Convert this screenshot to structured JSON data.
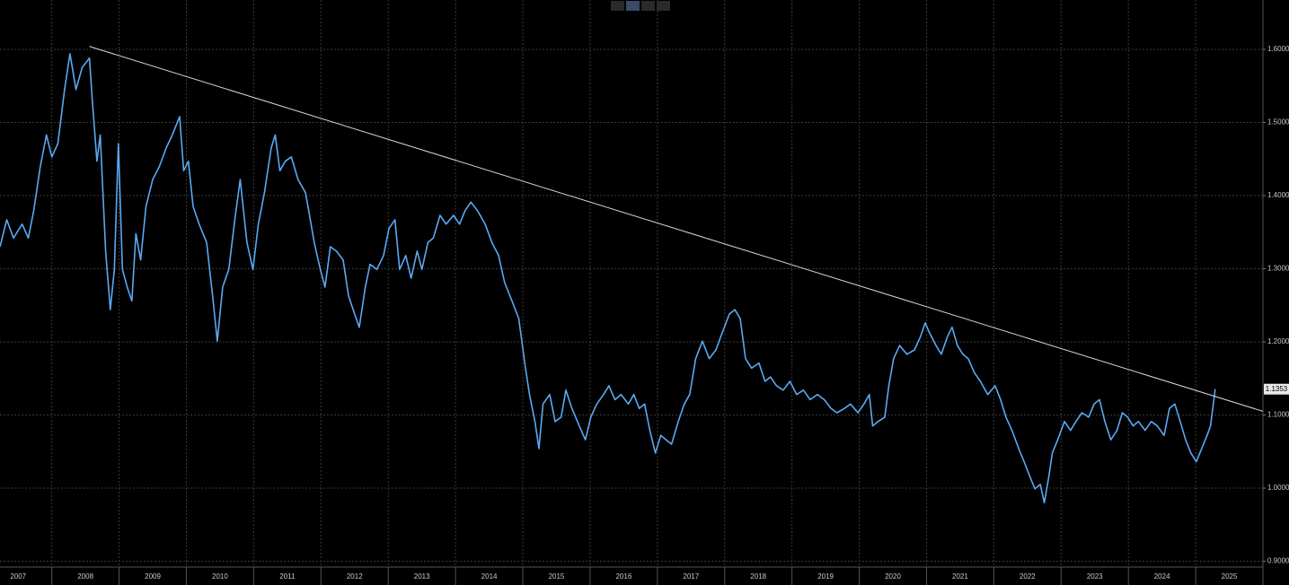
{
  "chart_data": {
    "type": "line",
    "x": [
      2007.23,
      2007.33,
      2007.43,
      2007.56,
      2007.65,
      2007.73,
      2007.83,
      2007.92,
      2008.0,
      2008.09,
      2008.19,
      2008.27,
      2008.36,
      2008.45,
      2008.56,
      2008.6,
      2008.67,
      2008.72,
      2008.8,
      2008.87,
      2008.93,
      2008.99,
      2009.05,
      2009.12,
      2009.19,
      2009.25,
      2009.32,
      2009.4,
      2009.5,
      2009.6,
      2009.7,
      2009.79,
      2009.9,
      2009.96,
      2010.03,
      2010.1,
      2010.19,
      2010.3,
      2010.39,
      2010.46,
      2010.54,
      2010.63,
      2010.72,
      2010.8,
      2010.9,
      2010.99,
      2011.07,
      2011.16,
      2011.26,
      2011.32,
      2011.39,
      2011.47,
      2011.56,
      2011.66,
      2011.77,
      2011.83,
      2011.9,
      2011.99,
      2012.06,
      2012.14,
      2012.23,
      2012.33,
      2012.41,
      2012.5,
      2012.57,
      2012.66,
      2012.73,
      2012.83,
      2012.93,
      2013.01,
      2013.1,
      2013.17,
      2013.26,
      2013.34,
      2013.43,
      2013.5,
      2013.59,
      2013.67,
      2013.77,
      2013.86,
      2013.97,
      2014.06,
      2014.14,
      2014.23,
      2014.33,
      2014.44,
      2014.54,
      2014.64,
      2014.73,
      2014.84,
      2014.94,
      2015.04,
      2015.1,
      2015.18,
      2015.24,
      2015.3,
      2015.4,
      2015.48,
      2015.57,
      2015.64,
      2015.73,
      2015.84,
      2015.93,
      2016.01,
      2016.1,
      2016.2,
      2016.28,
      2016.37,
      2016.46,
      2016.57,
      2016.65,
      2016.73,
      2016.81,
      2016.89,
      2016.97,
      2017.05,
      2017.13,
      2017.21,
      2017.31,
      2017.4,
      2017.48,
      2017.57,
      2017.67,
      2017.77,
      2017.87,
      2017.97,
      2018.07,
      2018.15,
      2018.23,
      2018.31,
      2018.4,
      2018.51,
      2018.6,
      2018.68,
      2018.77,
      2018.87,
      2018.97,
      2019.07,
      2019.17,
      2019.27,
      2019.38,
      2019.48,
      2019.58,
      2019.67,
      2019.78,
      2019.87,
      2019.98,
      2020.07,
      2020.15,
      2020.2,
      2020.28,
      2020.38,
      2020.44,
      2020.51,
      2020.6,
      2020.71,
      2020.82,
      2020.91,
      2020.98,
      2021.04,
      2021.14,
      2021.22,
      2021.31,
      2021.38,
      2021.46,
      2021.54,
      2021.62,
      2021.71,
      2021.8,
      2021.91,
      2022.02,
      2022.1,
      2022.18,
      2022.27,
      2022.37,
      2022.45,
      2022.53,
      2022.61,
      2022.69,
      2022.75,
      2022.82,
      2022.87,
      2022.95,
      2023.05,
      2023.14,
      2023.22,
      2023.31,
      2023.41,
      2023.49,
      2023.57,
      2023.65,
      2023.74,
      2023.83,
      2023.91,
      2023.99,
      2024.07,
      2024.15,
      2024.25,
      2024.34,
      2024.43,
      2024.53,
      2024.61,
      2024.69,
      2024.77,
      2024.85,
      2024.93,
      2025.01,
      2025.09,
      2025.17,
      2025.22,
      2025.28,
      2025.29
    ],
    "series": [
      {
        "color": "#5aa9f2",
        "values": [
          1.33,
          1.367,
          1.342,
          1.361,
          1.342,
          1.379,
          1.44,
          1.483,
          1.453,
          1.471,
          1.545,
          1.594,
          1.545,
          1.575,
          1.588,
          1.533,
          1.447,
          1.483,
          1.324,
          1.244,
          1.299,
          1.471,
          1.299,
          1.275,
          1.256,
          1.348,
          1.312,
          1.385,
          1.422,
          1.44,
          1.465,
          1.483,
          1.508,
          1.434,
          1.447,
          1.385,
          1.361,
          1.336,
          1.263,
          1.201,
          1.275,
          1.299,
          1.367,
          1.422,
          1.336,
          1.299,
          1.361,
          1.404,
          1.465,
          1.483,
          1.434,
          1.447,
          1.453,
          1.422,
          1.404,
          1.373,
          1.336,
          1.299,
          1.275,
          1.33,
          1.324,
          1.312,
          1.263,
          1.238,
          1.22,
          1.275,
          1.306,
          1.299,
          1.318,
          1.355,
          1.367,
          1.299,
          1.318,
          1.287,
          1.324,
          1.299,
          1.336,
          1.342,
          1.373,
          1.361,
          1.373,
          1.361,
          1.379,
          1.391,
          1.379,
          1.361,
          1.336,
          1.318,
          1.281,
          1.256,
          1.232,
          1.164,
          1.128,
          1.091,
          1.054,
          1.115,
          1.128,
          1.091,
          1.097,
          1.134,
          1.109,
          1.085,
          1.066,
          1.097,
          1.115,
          1.128,
          1.14,
          1.121,
          1.128,
          1.115,
          1.128,
          1.109,
          1.115,
          1.078,
          1.048,
          1.072,
          1.066,
          1.06,
          1.091,
          1.115,
          1.128,
          1.177,
          1.201,
          1.177,
          1.189,
          1.214,
          1.238,
          1.244,
          1.232,
          1.177,
          1.164,
          1.171,
          1.146,
          1.152,
          1.14,
          1.134,
          1.146,
          1.128,
          1.134,
          1.121,
          1.128,
          1.121,
          1.109,
          1.103,
          1.109,
          1.115,
          1.103,
          1.115,
          1.128,
          1.085,
          1.091,
          1.097,
          1.14,
          1.177,
          1.195,
          1.183,
          1.189,
          1.207,
          1.226,
          1.213,
          1.195,
          1.183,
          1.207,
          1.22,
          1.195,
          1.183,
          1.177,
          1.158,
          1.146,
          1.128,
          1.14,
          1.121,
          1.097,
          1.079,
          1.054,
          1.036,
          1.017,
          0.999,
          1.005,
          0.98,
          1.017,
          1.048,
          1.066,
          1.091,
          1.079,
          1.091,
          1.103,
          1.097,
          1.115,
          1.121,
          1.091,
          1.066,
          1.079,
          1.103,
          1.097,
          1.085,
          1.091,
          1.079,
          1.091,
          1.085,
          1.072,
          1.109,
          1.115,
          1.091,
          1.066,
          1.048,
          1.036,
          1.054,
          1.072,
          1.085,
          1.128,
          1.1353
        ]
      }
    ],
    "last_value": 1.1353,
    "trendline": {
      "color": "#d8d8d8",
      "x": [
        2008.56,
        2026.0
      ],
      "y": [
        1.604,
        1.105
      ]
    },
    "xlim": [
      2007.23,
      2026.0
    ],
    "xticks": [
      {
        "value": 2007,
        "label": "2007"
      },
      {
        "value": 2008,
        "label": "2008"
      },
      {
        "value": 2009,
        "label": "2009"
      },
      {
        "value": 2010,
        "label": "2010"
      },
      {
        "value": 2011,
        "label": "2011"
      },
      {
        "value": 2012,
        "label": "2012"
      },
      {
        "value": 2013,
        "label": "2013"
      },
      {
        "value": 2014,
        "label": "2014"
      },
      {
        "value": 2015,
        "label": "2015"
      },
      {
        "value": 2016,
        "label": "2016"
      },
      {
        "value": 2017,
        "label": "2017"
      },
      {
        "value": 2018,
        "label": "2018"
      },
      {
        "value": 2019,
        "label": "2019"
      },
      {
        "value": 2020,
        "label": "2020"
      },
      {
        "value": 2021,
        "label": "2021"
      },
      {
        "value": 2022,
        "label": "2022"
      },
      {
        "value": 2023,
        "label": "2023"
      },
      {
        "value": 2024,
        "label": "2024"
      },
      {
        "value": 2025,
        "label": "2025"
      }
    ],
    "ylim": [
      0.892,
      1.6675
    ],
    "yticks": [
      {
        "value": 0.9,
        "label": "0.9000"
      },
      {
        "value": 1.0,
        "label": "1.0000"
      },
      {
        "value": 1.1,
        "label": "1.1000"
      },
      {
        "value": 1.2,
        "label": "1.2000"
      },
      {
        "value": 1.3,
        "label": "1.3000"
      },
      {
        "value": 1.4,
        "label": "1.4000"
      },
      {
        "value": 1.5,
        "label": "1.5000"
      },
      {
        "value": 1.6,
        "label": "1.6000"
      }
    ],
    "grid": true
  }
}
